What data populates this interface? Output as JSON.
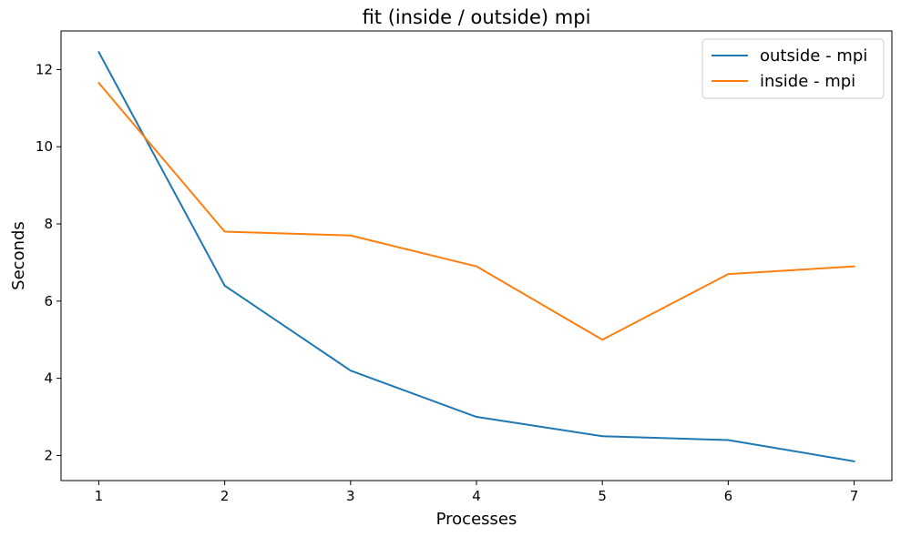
{
  "chart_data": {
    "type": "line",
    "title": "fit (inside / outside) mpi",
    "xlabel": "Processes",
    "ylabel": "Seconds",
    "x": [
      1,
      2,
      3,
      4,
      5,
      6,
      7
    ],
    "xticks": [
      "1",
      "2",
      "3",
      "4",
      "5",
      "6",
      "7"
    ],
    "yticks": [
      "2",
      "4",
      "6",
      "8",
      "10",
      "12"
    ],
    "xlim": [
      0.7,
      7.3
    ],
    "ylim": [
      1.35,
      13.0
    ],
    "grid": false,
    "legend_position": "top-right",
    "series": [
      {
        "name": "outside - mpi",
        "color": "#1f77b4",
        "values": [
          12.45,
          6.4,
          4.2,
          3.0,
          2.5,
          2.4,
          1.85
        ]
      },
      {
        "name": "inside - mpi",
        "color": "#ff7f0e",
        "values": [
          11.65,
          7.8,
          7.7,
          6.9,
          5.0,
          6.7,
          6.9
        ]
      }
    ]
  }
}
